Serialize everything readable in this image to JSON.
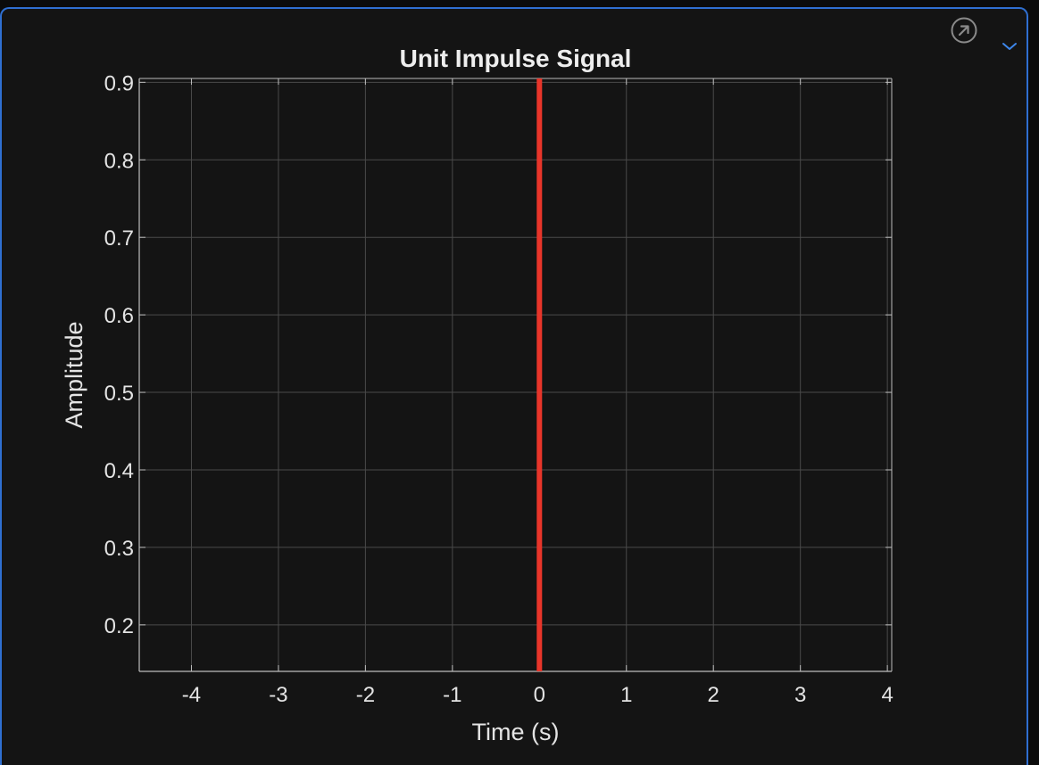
{
  "toolbar": {
    "popout_icon": "arrow-up-right-circle-icon",
    "menu_icon": "chevron-down-icon"
  },
  "chart_data": {
    "type": "line",
    "title": "Unit Impulse Signal",
    "xlabel": "Time (s)",
    "ylabel": "Amplitude",
    "xlim": [
      -4.6,
      4.05
    ],
    "ylim": [
      0.14,
      0.905
    ],
    "xticks": [
      -4,
      -3,
      -2,
      -1,
      0,
      1,
      2,
      3,
      4
    ],
    "yticks": [
      0.2,
      0.3,
      0.4,
      0.5,
      0.6,
      0.7,
      0.8,
      0.9
    ],
    "grid": true,
    "series": [
      {
        "color": "#e8352a",
        "x": [
          0,
          0
        ],
        "y": [
          0,
          1
        ]
      }
    ],
    "colors": {
      "background": "#141414",
      "grid": "#4a4a4a",
      "axis": "#bdbdbd",
      "accent_border": "#2f6fd1"
    }
  }
}
